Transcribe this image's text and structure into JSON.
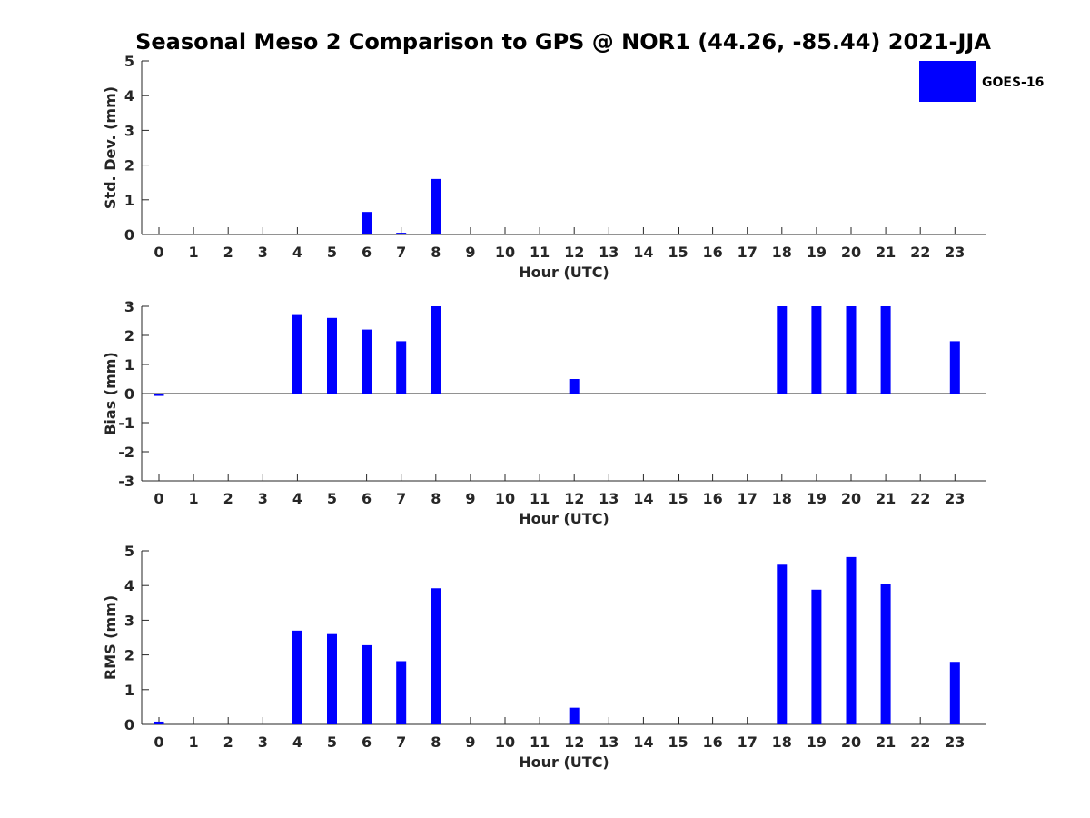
{
  "title": "Seasonal Meso 2 Comparison to GPS @ NOR1 (44.26, -85.44) 2021-JJA",
  "legend": {
    "label": "GOES-16",
    "color": "#0000ff"
  },
  "chart_data": [
    {
      "type": "bar",
      "ylabel": "Std. Dev. (mm)",
      "xlabel": "Hour (UTC)",
      "categories": [
        "0",
        "1",
        "2",
        "3",
        "4",
        "5",
        "6",
        "7",
        "8",
        "9",
        "10",
        "11",
        "12",
        "13",
        "14",
        "15",
        "16",
        "17",
        "18",
        "19",
        "20",
        "21",
        "22",
        "23"
      ],
      "values": [
        0,
        0,
        0,
        0,
        0,
        0,
        0.65,
        0.05,
        1.6,
        0,
        0,
        0,
        0,
        0,
        0,
        0,
        0,
        0,
        0,
        0,
        0,
        0,
        0,
        0
      ],
      "ylim": [
        0,
        5
      ],
      "yticks": [
        "0",
        "1",
        "2",
        "3",
        "4",
        "5"
      ],
      "series": [
        {
          "name": "GOES-16"
        }
      ]
    },
    {
      "type": "bar",
      "ylabel": "Bias (mm)",
      "xlabel": "Hour (UTC)",
      "categories": [
        "0",
        "1",
        "2",
        "3",
        "4",
        "5",
        "6",
        "7",
        "8",
        "9",
        "10",
        "11",
        "12",
        "13",
        "14",
        "15",
        "16",
        "17",
        "18",
        "19",
        "20",
        "21",
        "22",
        "23"
      ],
      "values": [
        -0.08,
        0,
        0,
        0,
        2.7,
        2.6,
        2.2,
        1.8,
        3.0,
        0,
        0,
        0,
        0.5,
        0,
        0,
        0,
        0,
        0,
        3.0,
        3.0,
        3.0,
        3.0,
        0,
        1.8
      ],
      "ylim": [
        -3,
        3
      ],
      "yticks": [
        "-3",
        "-2",
        "-1",
        "0",
        "1",
        "2",
        "3"
      ],
      "series": [
        {
          "name": "GOES-16"
        }
      ]
    },
    {
      "type": "bar",
      "ylabel": "RMS (mm)",
      "xlabel": "Hour (UTC)",
      "categories": [
        "0",
        "1",
        "2",
        "3",
        "4",
        "5",
        "6",
        "7",
        "8",
        "9",
        "10",
        "11",
        "12",
        "13",
        "14",
        "15",
        "16",
        "17",
        "18",
        "19",
        "20",
        "21",
        "22",
        "23"
      ],
      "values": [
        0.08,
        0,
        0,
        0,
        2.7,
        2.6,
        2.28,
        1.82,
        3.92,
        0,
        0,
        0,
        0.48,
        0,
        0,
        0,
        0,
        0,
        4.6,
        3.88,
        4.82,
        4.05,
        0,
        1.8
      ],
      "ylim": [
        0,
        5
      ],
      "yticks": [
        "0",
        "1",
        "2",
        "3",
        "4",
        "5"
      ],
      "series": [
        {
          "name": "GOES-16"
        }
      ]
    }
  ]
}
